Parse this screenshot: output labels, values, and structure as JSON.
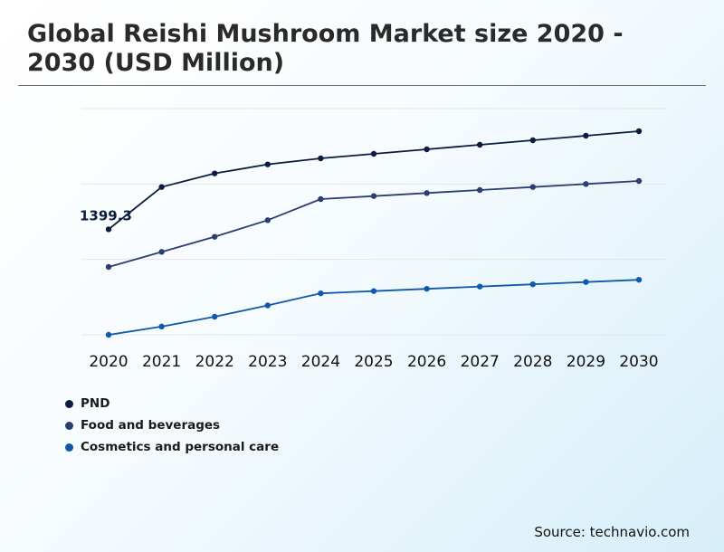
{
  "title": "Global Reishi Mushroom Market size 2020 - 2030 (USD Million)",
  "source": "Source: technavio.com",
  "chart_data": {
    "type": "line",
    "title": "Global Reishi Mushroom Market size 2020 - 2030 (USD Million)",
    "xlabel": "",
    "ylabel": "",
    "categories": [
      "2020",
      "2021",
      "2022",
      "2023",
      "2024",
      "2025",
      "2026",
      "2027",
      "2028",
      "2029",
      "2030"
    ],
    "ylim": [
      0,
      3000
    ],
    "grid": true,
    "legend_position": "bottom-left",
    "series": [
      {
        "name": "PND",
        "color": "#0b1d3f",
        "values": [
          1399.3,
          1960,
          2140,
          2260,
          2340,
          2400,
          2460,
          2520,
          2580,
          2640,
          2700
        ]
      },
      {
        "name": "Food and beverages",
        "color": "#2c3e6e",
        "values": [
          900,
          1100,
          1300,
          1520,
          1800,
          1840,
          1880,
          1920,
          1960,
          2000,
          2040
        ]
      },
      {
        "name": "Cosmetics and personal care",
        "color": "#0f5aa8",
        "values": [
          0,
          110,
          240,
          390,
          550,
          580,
          610,
          640,
          670,
          700,
          730
        ]
      }
    ],
    "annotations": [
      {
        "series": "PND",
        "category": "2020",
        "text": "1399.3"
      }
    ]
  }
}
